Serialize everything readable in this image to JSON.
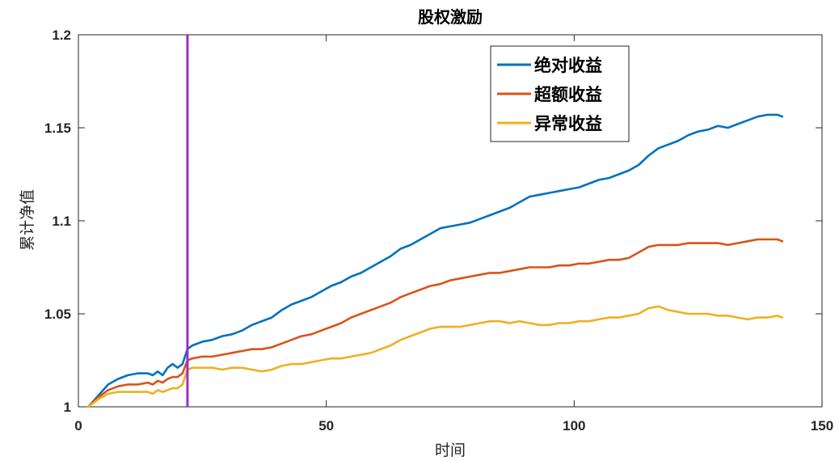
{
  "chart_data": {
    "type": "line",
    "title": "股权激励",
    "xlabel": "时间",
    "ylabel": "累计净值",
    "xlim": [
      0,
      150
    ],
    "ylim": [
      1.0,
      1.2
    ],
    "x_ticks": [
      0,
      50,
      100,
      150
    ],
    "x_tick_labels": [
      "0",
      "50",
      "100",
      "150"
    ],
    "y_ticks": [
      1.0,
      1.05,
      1.1,
      1.15,
      1.2
    ],
    "y_tick_labels": [
      "1",
      "1.05",
      "1.1",
      "1.15",
      "1.2"
    ],
    "grid": false,
    "legend_position": "top-right",
    "event_line": {
      "x": 22,
      "color": "#9b30c8"
    },
    "series": [
      {
        "name": "绝对收益",
        "color": "#0072BD",
        "points": [
          [
            2,
            1.0
          ],
          [
            4,
            1.006
          ],
          [
            6,
            1.012
          ],
          [
            8,
            1.015
          ],
          [
            10,
            1.017
          ],
          [
            12,
            1.018
          ],
          [
            14,
            1.018
          ],
          [
            15,
            1.017
          ],
          [
            16,
            1.019
          ],
          [
            17,
            1.017
          ],
          [
            18,
            1.021
          ],
          [
            19,
            1.023
          ],
          [
            20,
            1.021
          ],
          [
            21,
            1.023
          ],
          [
            22,
            1.031
          ],
          [
            23,
            1.033
          ],
          [
            25,
            1.035
          ],
          [
            27,
            1.036
          ],
          [
            29,
            1.038
          ],
          [
            31,
            1.039
          ],
          [
            33,
            1.041
          ],
          [
            35,
            1.044
          ],
          [
            37,
            1.046
          ],
          [
            39,
            1.048
          ],
          [
            41,
            1.052
          ],
          [
            43,
            1.055
          ],
          [
            45,
            1.057
          ],
          [
            47,
            1.059
          ],
          [
            49,
            1.062
          ],
          [
            51,
            1.065
          ],
          [
            53,
            1.067
          ],
          [
            55,
            1.07
          ],
          [
            57,
            1.072
          ],
          [
            59,
            1.075
          ],
          [
            61,
            1.078
          ],
          [
            63,
            1.081
          ],
          [
            65,
            1.085
          ],
          [
            67,
            1.087
          ],
          [
            69,
            1.09
          ],
          [
            71,
            1.093
          ],
          [
            73,
            1.096
          ],
          [
            75,
            1.097
          ],
          [
            77,
            1.098
          ],
          [
            79,
            1.099
          ],
          [
            81,
            1.101
          ],
          [
            83,
            1.103
          ],
          [
            85,
            1.105
          ],
          [
            87,
            1.107
          ],
          [
            89,
            1.11
          ],
          [
            91,
            1.113
          ],
          [
            93,
            1.114
          ],
          [
            95,
            1.115
          ],
          [
            97,
            1.116
          ],
          [
            99,
            1.117
          ],
          [
            101,
            1.118
          ],
          [
            103,
            1.12
          ],
          [
            105,
            1.122
          ],
          [
            107,
            1.123
          ],
          [
            109,
            1.125
          ],
          [
            111,
            1.127
          ],
          [
            113,
            1.13
          ],
          [
            115,
            1.135
          ],
          [
            117,
            1.139
          ],
          [
            119,
            1.141
          ],
          [
            121,
            1.143
          ],
          [
            123,
            1.146
          ],
          [
            125,
            1.148
          ],
          [
            127,
            1.149
          ],
          [
            129,
            1.151
          ],
          [
            131,
            1.15
          ],
          [
            133,
            1.152
          ],
          [
            135,
            1.154
          ],
          [
            137,
            1.156
          ],
          [
            139,
            1.157
          ],
          [
            141,
            1.157
          ],
          [
            142,
            1.156
          ]
        ]
      },
      {
        "name": "超额收益",
        "color": "#D95319",
        "points": [
          [
            2,
            1.0
          ],
          [
            4,
            1.005
          ],
          [
            6,
            1.009
          ],
          [
            8,
            1.011
          ],
          [
            10,
            1.012
          ],
          [
            12,
            1.012
          ],
          [
            14,
            1.013
          ],
          [
            15,
            1.012
          ],
          [
            16,
            1.014
          ],
          [
            17,
            1.013
          ],
          [
            18,
            1.015
          ],
          [
            19,
            1.016
          ],
          [
            20,
            1.016
          ],
          [
            21,
            1.018
          ],
          [
            22,
            1.025
          ],
          [
            23,
            1.026
          ],
          [
            25,
            1.027
          ],
          [
            27,
            1.027
          ],
          [
            29,
            1.028
          ],
          [
            31,
            1.029
          ],
          [
            33,
            1.03
          ],
          [
            35,
            1.031
          ],
          [
            37,
            1.031
          ],
          [
            39,
            1.032
          ],
          [
            41,
            1.034
          ],
          [
            43,
            1.036
          ],
          [
            45,
            1.038
          ],
          [
            47,
            1.039
          ],
          [
            49,
            1.041
          ],
          [
            51,
            1.043
          ],
          [
            53,
            1.045
          ],
          [
            55,
            1.048
          ],
          [
            57,
            1.05
          ],
          [
            59,
            1.052
          ],
          [
            61,
            1.054
          ],
          [
            63,
            1.056
          ],
          [
            65,
            1.059
          ],
          [
            67,
            1.061
          ],
          [
            69,
            1.063
          ],
          [
            71,
            1.065
          ],
          [
            73,
            1.066
          ],
          [
            75,
            1.068
          ],
          [
            77,
            1.069
          ],
          [
            79,
            1.07
          ],
          [
            81,
            1.071
          ],
          [
            83,
            1.072
          ],
          [
            85,
            1.072
          ],
          [
            87,
            1.073
          ],
          [
            89,
            1.074
          ],
          [
            91,
            1.075
          ],
          [
            93,
            1.075
          ],
          [
            95,
            1.075
          ],
          [
            97,
            1.076
          ],
          [
            99,
            1.076
          ],
          [
            101,
            1.077
          ],
          [
            103,
            1.077
          ],
          [
            105,
            1.078
          ],
          [
            107,
            1.079
          ],
          [
            109,
            1.079
          ],
          [
            111,
            1.08
          ],
          [
            113,
            1.083
          ],
          [
            115,
            1.086
          ],
          [
            117,
            1.087
          ],
          [
            119,
            1.087
          ],
          [
            121,
            1.087
          ],
          [
            123,
            1.088
          ],
          [
            125,
            1.088
          ],
          [
            127,
            1.088
          ],
          [
            129,
            1.088
          ],
          [
            131,
            1.087
          ],
          [
            133,
            1.088
          ],
          [
            135,
            1.089
          ],
          [
            137,
            1.09
          ],
          [
            139,
            1.09
          ],
          [
            141,
            1.09
          ],
          [
            142,
            1.089
          ]
        ]
      },
      {
        "name": "异常收益",
        "color": "#EDB120",
        "points": [
          [
            2,
            1.0
          ],
          [
            4,
            1.004
          ],
          [
            6,
            1.007
          ],
          [
            8,
            1.008
          ],
          [
            10,
            1.008
          ],
          [
            12,
            1.008
          ],
          [
            14,
            1.008
          ],
          [
            15,
            1.007
          ],
          [
            16,
            1.009
          ],
          [
            17,
            1.008
          ],
          [
            18,
            1.009
          ],
          [
            19,
            1.01
          ],
          [
            20,
            1.01
          ],
          [
            21,
            1.012
          ],
          [
            22,
            1.02
          ],
          [
            23,
            1.021
          ],
          [
            25,
            1.021
          ],
          [
            27,
            1.021
          ],
          [
            29,
            1.02
          ],
          [
            31,
            1.021
          ],
          [
            33,
            1.021
          ],
          [
            35,
            1.02
          ],
          [
            37,
            1.019
          ],
          [
            39,
            1.02
          ],
          [
            41,
            1.022
          ],
          [
            43,
            1.023
          ],
          [
            45,
            1.023
          ],
          [
            47,
            1.024
          ],
          [
            49,
            1.025
          ],
          [
            51,
            1.026
          ],
          [
            53,
            1.026
          ],
          [
            55,
            1.027
          ],
          [
            57,
            1.028
          ],
          [
            59,
            1.029
          ],
          [
            61,
            1.031
          ],
          [
            63,
            1.033
          ],
          [
            65,
            1.036
          ],
          [
            67,
            1.038
          ],
          [
            69,
            1.04
          ],
          [
            71,
            1.042
          ],
          [
            73,
            1.043
          ],
          [
            75,
            1.043
          ],
          [
            77,
            1.043
          ],
          [
            79,
            1.044
          ],
          [
            81,
            1.045
          ],
          [
            83,
            1.046
          ],
          [
            85,
            1.046
          ],
          [
            87,
            1.045
          ],
          [
            89,
            1.046
          ],
          [
            91,
            1.045
          ],
          [
            93,
            1.044
          ],
          [
            95,
            1.044
          ],
          [
            97,
            1.045
          ],
          [
            99,
            1.045
          ],
          [
            101,
            1.046
          ],
          [
            103,
            1.046
          ],
          [
            105,
            1.047
          ],
          [
            107,
            1.048
          ],
          [
            109,
            1.048
          ],
          [
            111,
            1.049
          ],
          [
            113,
            1.05
          ],
          [
            115,
            1.053
          ],
          [
            117,
            1.054
          ],
          [
            119,
            1.052
          ],
          [
            121,
            1.051
          ],
          [
            123,
            1.05
          ],
          [
            125,
            1.05
          ],
          [
            127,
            1.05
          ],
          [
            129,
            1.049
          ],
          [
            131,
            1.049
          ],
          [
            133,
            1.048
          ],
          [
            135,
            1.047
          ],
          [
            137,
            1.048
          ],
          [
            139,
            1.048
          ],
          [
            141,
            1.049
          ],
          [
            142,
            1.048
          ]
        ]
      }
    ]
  }
}
